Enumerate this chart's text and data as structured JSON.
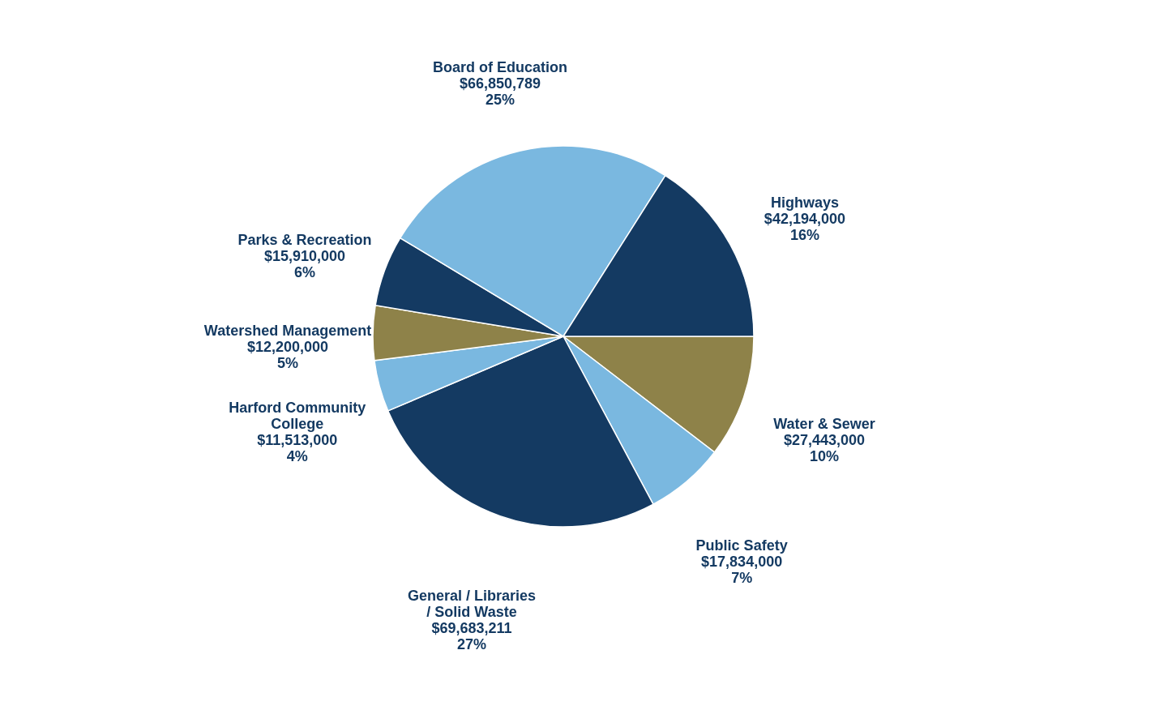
{
  "chart_data": {
    "type": "pie",
    "categories": [
      "Water & Sewer",
      "Public Safety",
      "General / Libraries / Solid Waste",
      "Harford Community College",
      "Watershed Management",
      "Parks & Recreation",
      "Board of Education",
      "Highways"
    ],
    "values": [
      27443000,
      17834000,
      69683211,
      11513000,
      12200000,
      15910000,
      66850789,
      42194000
    ],
    "value_labels": [
      "$27,443,000\n10%",
      "$17,834,000\n7%",
      "$69,683,211\n27%",
      "$11,513,000\n4%",
      "$12,200,000\n5%",
      "$15,910,000\n6%",
      "$66,850,789\n25%",
      "$42,194,000\n16%"
    ],
    "colors": [
      "#8e8249",
      "#7ab8e0",
      "#143a62",
      "#7ab8e0",
      "#8e8249",
      "#143a62",
      "#7ab8e0",
      "#143a62"
    ],
    "legend": false
  }
}
